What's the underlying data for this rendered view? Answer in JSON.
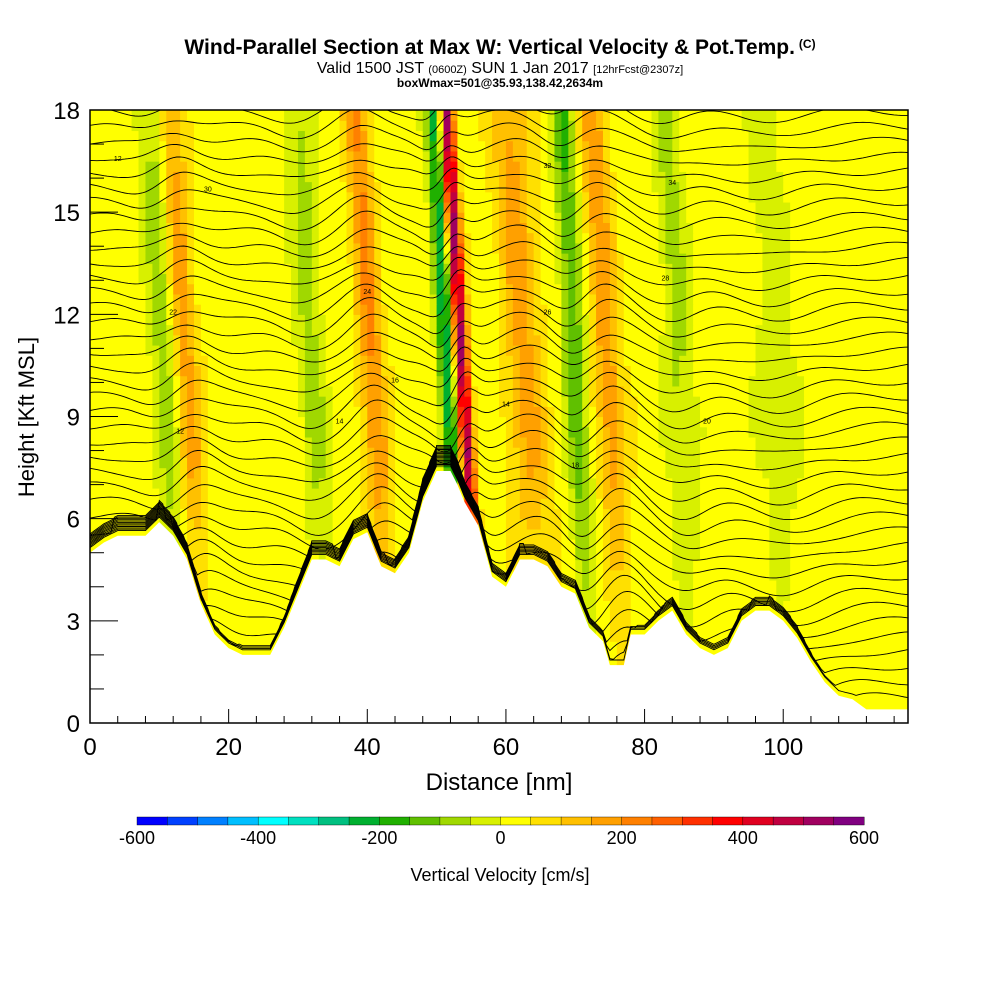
{
  "header": {
    "title": "Wind-Parallel Section at Max W: Vertical Velocity & Pot.Temp.",
    "copyright": "(C)",
    "valid_main": "Valid 1500 JST",
    "valid_utc": "(0600Z)",
    "valid_date": "SUN 1 Jan 2017",
    "forecast": "[12hrFcst@2307z]",
    "box_info": "boxWmax=501@35.93,138.42,2634m"
  },
  "chart_data": {
    "type": "heatmap",
    "xlabel": "Distance [nm]",
    "ylabel": "Height [Kft MSL]",
    "xlim": [
      0,
      118
    ],
    "ylim": [
      0,
      18
    ],
    "x_ticks": [
      0,
      20,
      40,
      60,
      80,
      100
    ],
    "y_ticks": [
      0,
      3,
      6,
      9,
      12,
      15,
      18
    ],
    "colorbar": {
      "label": "Vertical Velocity [cm/s]",
      "range": [
        -600,
        600
      ],
      "tick_values": [
        -600,
        -400,
        -200,
        0,
        200,
        400,
        600
      ],
      "tick_labels": [
        "-600",
        "-400",
        "-200",
        "0",
        "200",
        "400",
        "600"
      ],
      "colors": [
        "#0000ff",
        "#0040ff",
        "#0080ff",
        "#00bfff",
        "#00ffff",
        "#00e0c0",
        "#00c080",
        "#00b030",
        "#20b000",
        "#60c000",
        "#a0d800",
        "#d8f000",
        "#ffff00",
        "#ffe000",
        "#ffc000",
        "#ffa000",
        "#ff8000",
        "#ff6000",
        "#ff3000",
        "#ff0000",
        "#e00020",
        "#c00040",
        "#a00060",
        "#800080"
      ]
    },
    "terrain_kft": [
      [
        0,
        5
      ],
      [
        2,
        5.3
      ],
      [
        4,
        5.5
      ],
      [
        8,
        5.5
      ],
      [
        10,
        5.9
      ],
      [
        12,
        5.5
      ],
      [
        14,
        4.8
      ],
      [
        16,
        3.5
      ],
      [
        18,
        2.6
      ],
      [
        20,
        2.2
      ],
      [
        22,
        2.0
      ],
      [
        26,
        2.0
      ],
      [
        28,
        2.8
      ],
      [
        30,
        3.8
      ],
      [
        32,
        4.8
      ],
      [
        34,
        4.8
      ],
      [
        36,
        4.6
      ],
      [
        38,
        5.4
      ],
      [
        40,
        5.6
      ],
      [
        42,
        4.6
      ],
      [
        44,
        4.4
      ],
      [
        46,
        5.0
      ],
      [
        48,
        6.5
      ],
      [
        50,
        7.4
      ],
      [
        52,
        7.4
      ],
      [
        53,
        7.0
      ],
      [
        54,
        6.5
      ],
      [
        56,
        5.8
      ],
      [
        58,
        4.3
      ],
      [
        60,
        4.0
      ],
      [
        62,
        4.8
      ],
      [
        64,
        4.8
      ],
      [
        66,
        4.6
      ],
      [
        68,
        4.0
      ],
      [
        70,
        3.8
      ],
      [
        72,
        2.8
      ],
      [
        74,
        2.4
      ],
      [
        75,
        1.7
      ],
      [
        77,
        1.7
      ],
      [
        78,
        2.6
      ],
      [
        80,
        2.6
      ],
      [
        82,
        3.0
      ],
      [
        84,
        3.3
      ],
      [
        86,
        2.6
      ],
      [
        88,
        2.2
      ],
      [
        90,
        2.0
      ],
      [
        92,
        2.2
      ],
      [
        94,
        3.0
      ],
      [
        96,
        3.3
      ],
      [
        98,
        3.3
      ],
      [
        100,
        3.0
      ],
      [
        102,
        2.5
      ],
      [
        104,
        1.8
      ],
      [
        106,
        1.2
      ],
      [
        108,
        0.8
      ],
      [
        110,
        0.7
      ],
      [
        112,
        0.4
      ],
      [
        118,
        0.4
      ]
    ],
    "updrafts": [
      {
        "x": 15,
        "width": 2.0,
        "w": 160
      },
      {
        "x": 42,
        "width": 1.8,
        "w": 180
      },
      {
        "x": 55,
        "width": 1.0,
        "w": 501
      },
      {
        "x": 64,
        "width": 2.8,
        "w": 140
      },
      {
        "x": 76,
        "width": 2.0,
        "w": 160
      }
    ],
    "downdrafts": [
      {
        "x": 12,
        "width": 2.0,
        "w": -120
      },
      {
        "x": 33,
        "width": 2.0,
        "w": -90
      },
      {
        "x": 52.5,
        "width": 1.2,
        "w": -260
      },
      {
        "x": 71,
        "width": 1.6,
        "w": -170
      },
      {
        "x": 86,
        "width": 2.0,
        "w": -90
      },
      {
        "x": 100,
        "width": 3.0,
        "w": -50
      }
    ],
    "contour_labels": [
      "12",
      "14",
      "16",
      "18",
      "20",
      "22",
      "24",
      "26",
      "28",
      "30",
      "32",
      "34"
    ]
  }
}
